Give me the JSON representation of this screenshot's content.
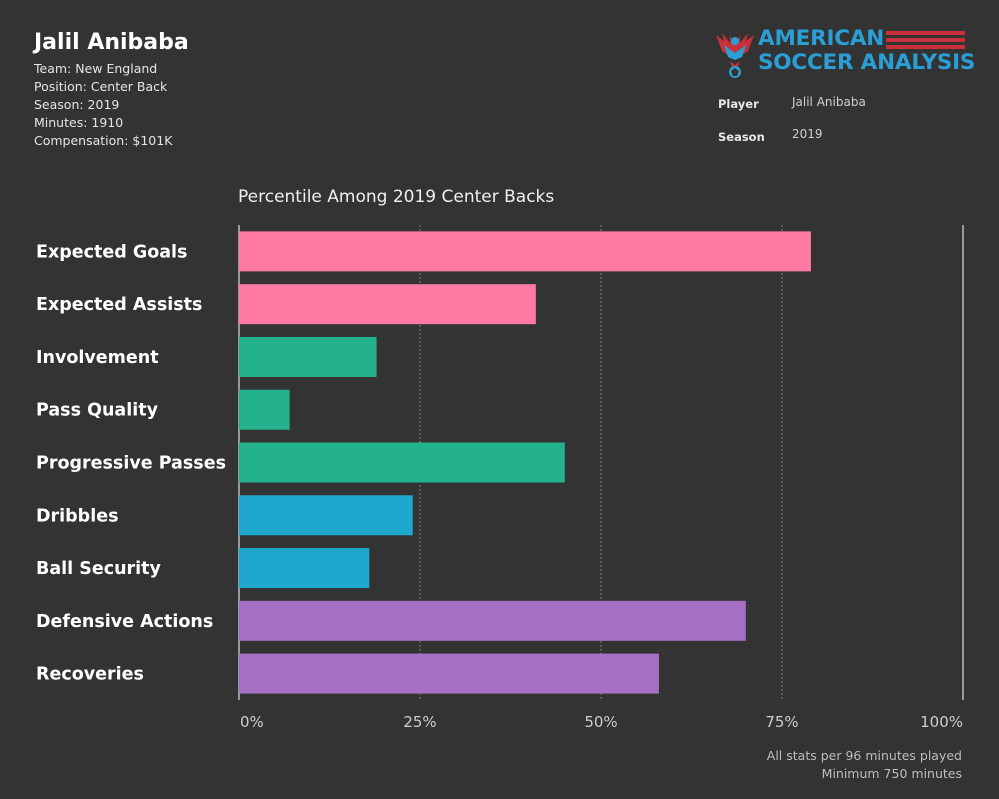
{
  "header": {
    "player_name": "Jalil Anibaba",
    "info": [
      "Team: New England",
      "Position: Center Back",
      "Season: 2019",
      "Minutes: 1910",
      "Compensation: $101K"
    ]
  },
  "logo": {
    "line1": "AMERICAN",
    "line2": "SOCCER ANALYSIS",
    "brand_color": "#2a9fd6",
    "accent_color": "#c8303a"
  },
  "filters": {
    "player_label": "Player",
    "player_value": "Jalil Anibaba",
    "season_label": "Season",
    "season_value": "2019"
  },
  "chart_data": {
    "type": "bar",
    "orientation": "horizontal",
    "title": "Percentile Among 2019 Center Backs",
    "categories": [
      "Expected Goals",
      "Expected Assists",
      "Involvement",
      "Pass Quality",
      "Progressive Passes",
      "Dribbles",
      "Ball Security",
      "Defensive Actions",
      "Recoveries"
    ],
    "values": [
      79,
      41,
      19,
      7,
      45,
      24,
      18,
      70,
      58
    ],
    "colors": [
      "#ff7aa2",
      "#ff7aa2",
      "#23b28c",
      "#23b28c",
      "#23b28c",
      "#1ea8cd",
      "#1ea8cd",
      "#a56fc4",
      "#a56fc4"
    ],
    "xlim": [
      0,
      100
    ],
    "x_ticks": [
      "0%",
      "25%",
      "50%",
      "75%",
      "100%"
    ],
    "grid": "vertical dotted"
  },
  "footnote": {
    "line1": "All stats per 96 minutes played",
    "line2": "Minimum 750 minutes"
  }
}
